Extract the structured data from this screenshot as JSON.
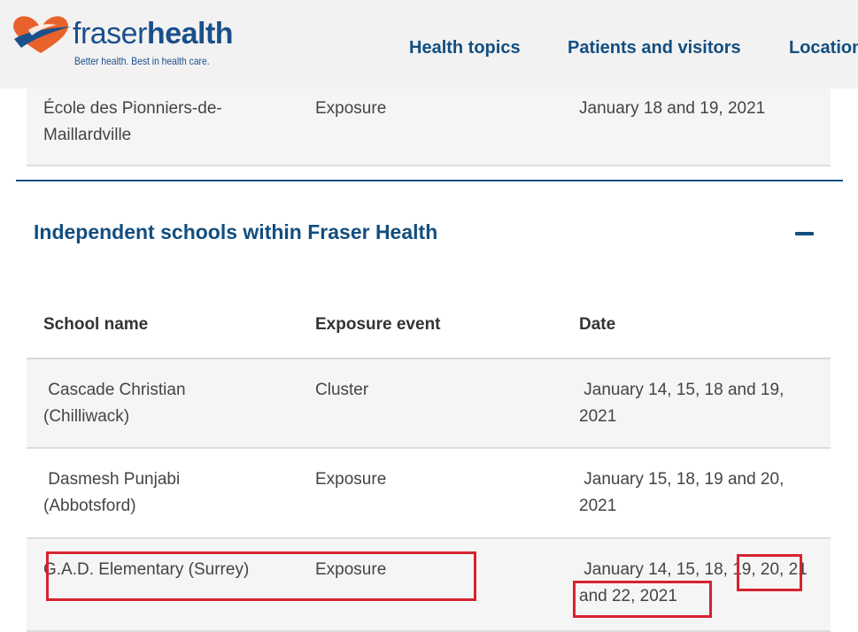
{
  "header": {
    "logo": {
      "word_light": "fraser",
      "word_bold": "health",
      "tagline": "Better health. Best in health care.",
      "icon": "heart-logo-icon"
    },
    "nav": [
      {
        "label": "Health topics"
      },
      {
        "label": "Patients and visitors"
      },
      {
        "label": "Locations"
      }
    ]
  },
  "previous_table": {
    "last_row": {
      "school": "École des Pionniers-de-Maillardville",
      "event": "Exposure",
      "date": "January 18 and 19, 2021"
    }
  },
  "section": {
    "title": "Independent schools within Fraser Health",
    "toggle_icon": "minus-icon",
    "table": {
      "headers": {
        "school": "School name",
        "event": "Exposure event",
        "date": "Date"
      },
      "rows": [
        {
          "school": " Cascade Christian (Chilliwack)",
          "event": "Cluster",
          "date": " January 14, 15, 18 and 19, 2021"
        },
        {
          "school": " Dasmesh Punjabi (Abbotsford)",
          "event": "Exposure",
          "date": " January 15, 18, 19 and 20, 2021"
        },
        {
          "school": "G.A.D. Elementary (Surrey)",
          "event": "Exposure",
          "date": " January 14, 15, 18, 19, 20, 21 and 22, 2021"
        }
      ]
    }
  },
  "colors": {
    "brand_blue": "#124e80",
    "logo_orange": "#e8632b",
    "annotation_red": "#d5232f",
    "row_stripe": "#f5f5f5"
  }
}
